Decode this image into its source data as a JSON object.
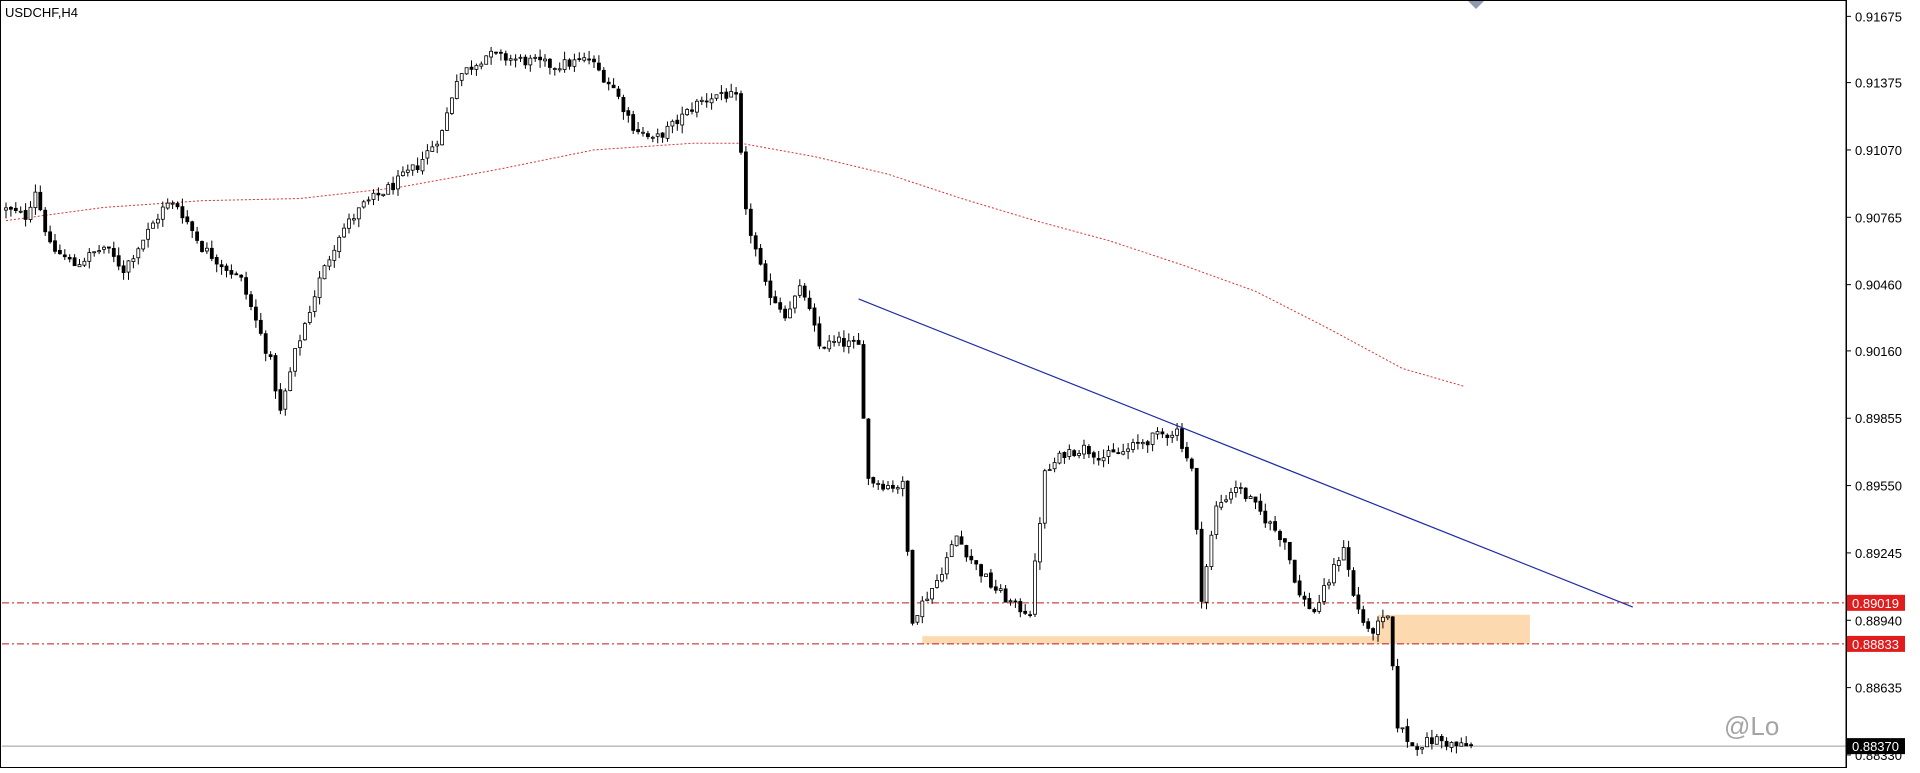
{
  "window": {
    "title": "USDCHF,H4",
    "watermark_text": "@Lo"
  },
  "colors": {
    "background": "#ffffff",
    "axis": "#000000",
    "bull_body": "#ffffff",
    "bear_body": "#000000",
    "wick": "#000000",
    "moving_average": "#e03030",
    "trendline": "#1f2aa6",
    "horizontal_line": "#c01818",
    "zone_fill": "#fcd9ae",
    "price_line": "#9a9a9a",
    "label_bg": "#e01c1c",
    "current_label_bg": "#000000"
  },
  "chart_data": {
    "type": "candlestick",
    "symbol": "USDCHF",
    "timeframe": "H4",
    "ylim": [
      0.8828,
      0.9174
    ],
    "bar_count": 300,
    "y_ticks": [
      "0.91675",
      "0.91375",
      "0.91070",
      "0.90765",
      "0.90460",
      "0.90160",
      "0.89855",
      "0.89550",
      "0.89245",
      "0.88940",
      "0.88635",
      "0.88330"
    ],
    "y_tick_values": [
      0.91675,
      0.91375,
      0.9107,
      0.90765,
      0.9046,
      0.9016,
      0.89855,
      0.8955,
      0.89245,
      0.8894,
      0.88635,
      0.8833
    ],
    "close_path": [
      [
        0,
        0.908
      ],
      [
        8,
        0.9077
      ],
      [
        12,
        0.9089
      ],
      [
        18,
        0.9063
      ],
      [
        28,
        0.9055
      ],
      [
        40,
        0.9063
      ],
      [
        48,
        0.9053
      ],
      [
        58,
        0.907
      ],
      [
        65,
        0.9082
      ],
      [
        70,
        0.9082
      ],
      [
        80,
        0.9063
      ],
      [
        96,
        0.9048
      ],
      [
        108,
        0.9011
      ],
      [
        112,
        0.8988
      ],
      [
        118,
        0.9015
      ],
      [
        128,
        0.9048
      ],
      [
        136,
        0.9069
      ],
      [
        146,
        0.9082
      ],
      [
        158,
        0.9091
      ],
      [
        168,
        0.91
      ],
      [
        178,
        0.9115
      ],
      [
        184,
        0.914
      ],
      [
        196,
        0.915
      ],
      [
        214,
        0.9147
      ],
      [
        224,
        0.9145
      ],
      [
        238,
        0.9148
      ],
      [
        248,
        0.9135
      ],
      [
        256,
        0.9118
      ],
      [
        264,
        0.9111
      ],
      [
        272,
        0.9118
      ],
      [
        282,
        0.9128
      ],
      [
        292,
        0.9133
      ],
      [
        298,
        0.913
      ],
      [
        302,
        0.9078
      ],
      [
        310,
        0.9045
      ],
      [
        318,
        0.9033
      ],
      [
        325,
        0.9045
      ],
      [
        332,
        0.9018
      ],
      [
        340,
        0.902
      ],
      [
        348,
        0.9018
      ],
      [
        352,
        0.8958
      ],
      [
        360,
        0.8955
      ],
      [
        366,
        0.8955
      ],
      [
        370,
        0.8895
      ],
      [
        380,
        0.8912
      ],
      [
        388,
        0.8932
      ],
      [
        395,
        0.892
      ],
      [
        402,
        0.891
      ],
      [
        412,
        0.89
      ],
      [
        418,
        0.8898
      ],
      [
        424,
        0.896
      ],
      [
        432,
        0.897
      ],
      [
        440,
        0.8972
      ],
      [
        448,
        0.8968
      ],
      [
        456,
        0.897
      ],
      [
        464,
        0.8975
      ],
      [
        472,
        0.8978
      ],
      [
        478,
        0.898
      ],
      [
        484,
        0.8962
      ],
      [
        488,
        0.8905
      ],
      [
        494,
        0.8945
      ],
      [
        502,
        0.8955
      ],
      [
        508,
        0.8948
      ],
      [
        514,
        0.894
      ],
      [
        522,
        0.893
      ],
      [
        528,
        0.8905
      ],
      [
        534,
        0.8898
      ],
      [
        540,
        0.8912
      ],
      [
        546,
        0.8928
      ],
      [
        550,
        0.8905
      ],
      [
        556,
        0.8888
      ],
      [
        564,
        0.8895
      ],
      [
        568,
        0.8847
      ],
      [
        574,
        0.8837
      ],
      [
        584,
        0.884
      ],
      [
        592,
        0.8837
      ],
      [
        596,
        0.8837
      ]
    ],
    "volatility": 0.00042,
    "moving_average": [
      [
        0,
        0.9075
      ],
      [
        40,
        0.9081
      ],
      [
        80,
        0.9084
      ],
      [
        120,
        0.9085
      ],
      [
        160,
        0.909
      ],
      [
        200,
        0.9098
      ],
      [
        240,
        0.9107
      ],
      [
        280,
        0.911
      ],
      [
        300,
        0.911
      ],
      [
        330,
        0.9104
      ],
      [
        360,
        0.9096
      ],
      [
        390,
        0.9085
      ],
      [
        420,
        0.9075
      ],
      [
        450,
        0.9066
      ],
      [
        480,
        0.9055
      ],
      [
        510,
        0.9043
      ],
      [
        540,
        0.9026
      ],
      [
        570,
        0.9008
      ],
      [
        595,
        0.9
      ]
    ],
    "trendline": {
      "from": [
        348,
        0.90395
      ],
      "to": [
        664,
        0.89
      ]
    },
    "horizontal_levels": [
      {
        "value": 0.89019,
        "label": "0.89019"
      },
      {
        "value": 0.88833,
        "label": "0.88833"
      }
    ],
    "support_zone": {
      "from_x": 374,
      "to_x": 600,
      "low": 0.88833,
      "high": 0.88868
    },
    "breakout_zone": {
      "from_x": 560,
      "to_x": 622,
      "low": 0.88833,
      "high": 0.88965
    },
    "current_price": 0.8837,
    "current_price_label": "0.88370"
  }
}
